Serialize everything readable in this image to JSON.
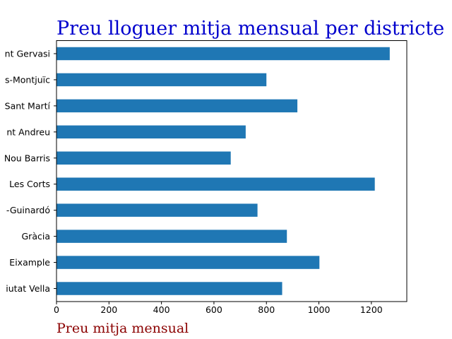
{
  "chart_data": {
    "type": "bar",
    "orientation": "horizontal",
    "title": "Preu lloguer mitja mensual per districte",
    "xlabel": "Preu mitja mensual",
    "ylabel": "",
    "categories": [
      "Ciutat Vella",
      "Eixample",
      "Gràcia",
      "Horta-Guinardó",
      "Les Corts",
      "Nou Barris",
      "Sant Andreu",
      "Sant Martí",
      "Sants-Montjuïc",
      "Sarrià-Sant Gervasi"
    ],
    "category_labels": [
      "iutat Vella",
      "Eixample",
      "Gràcia",
      "-Guinardó",
      "Les Corts",
      "Nou Barris",
      "nt Andreu",
      "Sant Martí",
      "s-Montjuïc",
      "nt Gervasi"
    ],
    "values": [
      860,
      1002,
      878,
      766,
      1213,
      664,
      721,
      918,
      800,
      1270
    ],
    "xlim": [
      0,
      1335
    ],
    "xticks": [
      0,
      200,
      400,
      600,
      800,
      1000,
      1200
    ],
    "grid": false,
    "colors": {
      "bar": "#1f77b4",
      "title": "#0000cd",
      "xlabel": "#8b0000"
    }
  }
}
